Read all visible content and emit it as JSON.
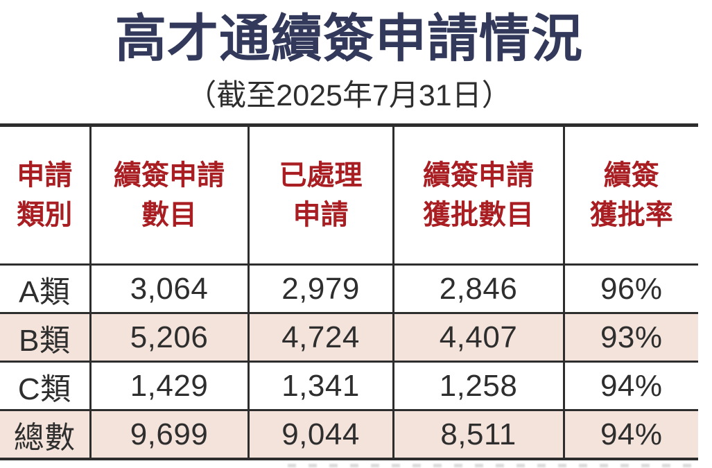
{
  "title": "高才通續簽申請情況",
  "subtitle": "（截至2025年7月31日）",
  "colors": {
    "title_navy": "#32395a",
    "header_red": "#a81e22",
    "row_highlight": "#f4e3da",
    "border_dark": "#2d2d2d",
    "text_dark": "#2e2e2e"
  },
  "table": {
    "columns": [
      {
        "label": "申請類別",
        "lines": [
          "申請",
          "類別"
        ]
      },
      {
        "label": "續簽申請數目",
        "lines": [
          "續簽申請",
          "數目"
        ]
      },
      {
        "label": "已處理申請",
        "lines": [
          "已處理",
          "申請"
        ]
      },
      {
        "label": "續簽申請獲批數目",
        "lines": [
          "續簽申請",
          "獲批數目"
        ]
      },
      {
        "label": "續簽獲批率",
        "lines": [
          "續簽",
          "獲批率"
        ]
      }
    ],
    "rows": [
      {
        "category": "A類",
        "applications": "3,064",
        "processed": "2,979",
        "approved": "2,846",
        "rate": "96%"
      },
      {
        "category": "B類",
        "applications": "5,206",
        "processed": "4,724",
        "approved": "4,407",
        "rate": "93%"
      },
      {
        "category": "C類",
        "applications": "1,429",
        "processed": "1,341",
        "approved": "1,258",
        "rate": "94%"
      },
      {
        "category": "總數",
        "applications": "9,699",
        "processed": "9,044",
        "approved": "8,511",
        "rate": "94%"
      }
    ]
  },
  "chart_data": {
    "type": "table",
    "title": "高才通續簽申請情況",
    "subtitle": "（截至2025年7月31日）",
    "columns": [
      "申請類別",
      "續簽申請數目",
      "已處理申請",
      "續簽申請獲批數目",
      "續簽獲批率"
    ],
    "rows": [
      [
        "A類",
        3064,
        2979,
        2846,
        "96%"
      ],
      [
        "B類",
        5206,
        4724,
        4407,
        "93%"
      ],
      [
        "C類",
        1429,
        1341,
        1258,
        "94%"
      ],
      [
        "總數",
        9699,
        9044,
        8511,
        "94%"
      ]
    ]
  }
}
